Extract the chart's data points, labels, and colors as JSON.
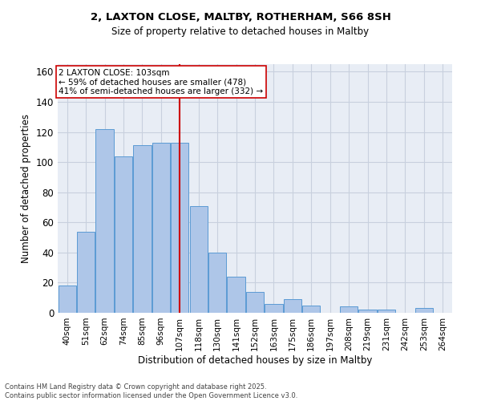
{
  "title1": "2, LAXTON CLOSE, MALTBY, ROTHERHAM, S66 8SH",
  "title2": "Size of property relative to detached houses in Maltby",
  "xlabel": "Distribution of detached houses by size in Maltby",
  "ylabel": "Number of detached properties",
  "bar_labels": [
    "40sqm",
    "51sqm",
    "62sqm",
    "74sqm",
    "85sqm",
    "96sqm",
    "107sqm",
    "118sqm",
    "130sqm",
    "141sqm",
    "152sqm",
    "163sqm",
    "175sqm",
    "186sqm",
    "197sqm",
    "208sqm",
    "219sqm",
    "231sqm",
    "242sqm",
    "253sqm",
    "264sqm"
  ],
  "bar_values": [
    18,
    54,
    122,
    104,
    111,
    113,
    113,
    71,
    40,
    24,
    14,
    6,
    9,
    5,
    0,
    4,
    2,
    2,
    0,
    3,
    0
  ],
  "bar_color": "#aec6e8",
  "bar_edge_color": "#5b9bd4",
  "vline_color": "#cc0000",
  "annotation_text": "2 LAXTON CLOSE: 103sqm\n← 59% of detached houses are smaller (478)\n41% of semi-detached houses are larger (332) →",
  "annotation_box_color": "#ffffff",
  "annotation_box_edge": "#cc0000",
  "ylim": [
    0,
    165
  ],
  "yticks": [
    0,
    20,
    40,
    60,
    80,
    100,
    120,
    140,
    160
  ],
  "grid_color": "#c8d0de",
  "bg_color": "#e8edf5",
  "footer": "Contains HM Land Registry data © Crown copyright and database right 2025.\nContains public sector information licensed under the Open Government Licence v3.0."
}
